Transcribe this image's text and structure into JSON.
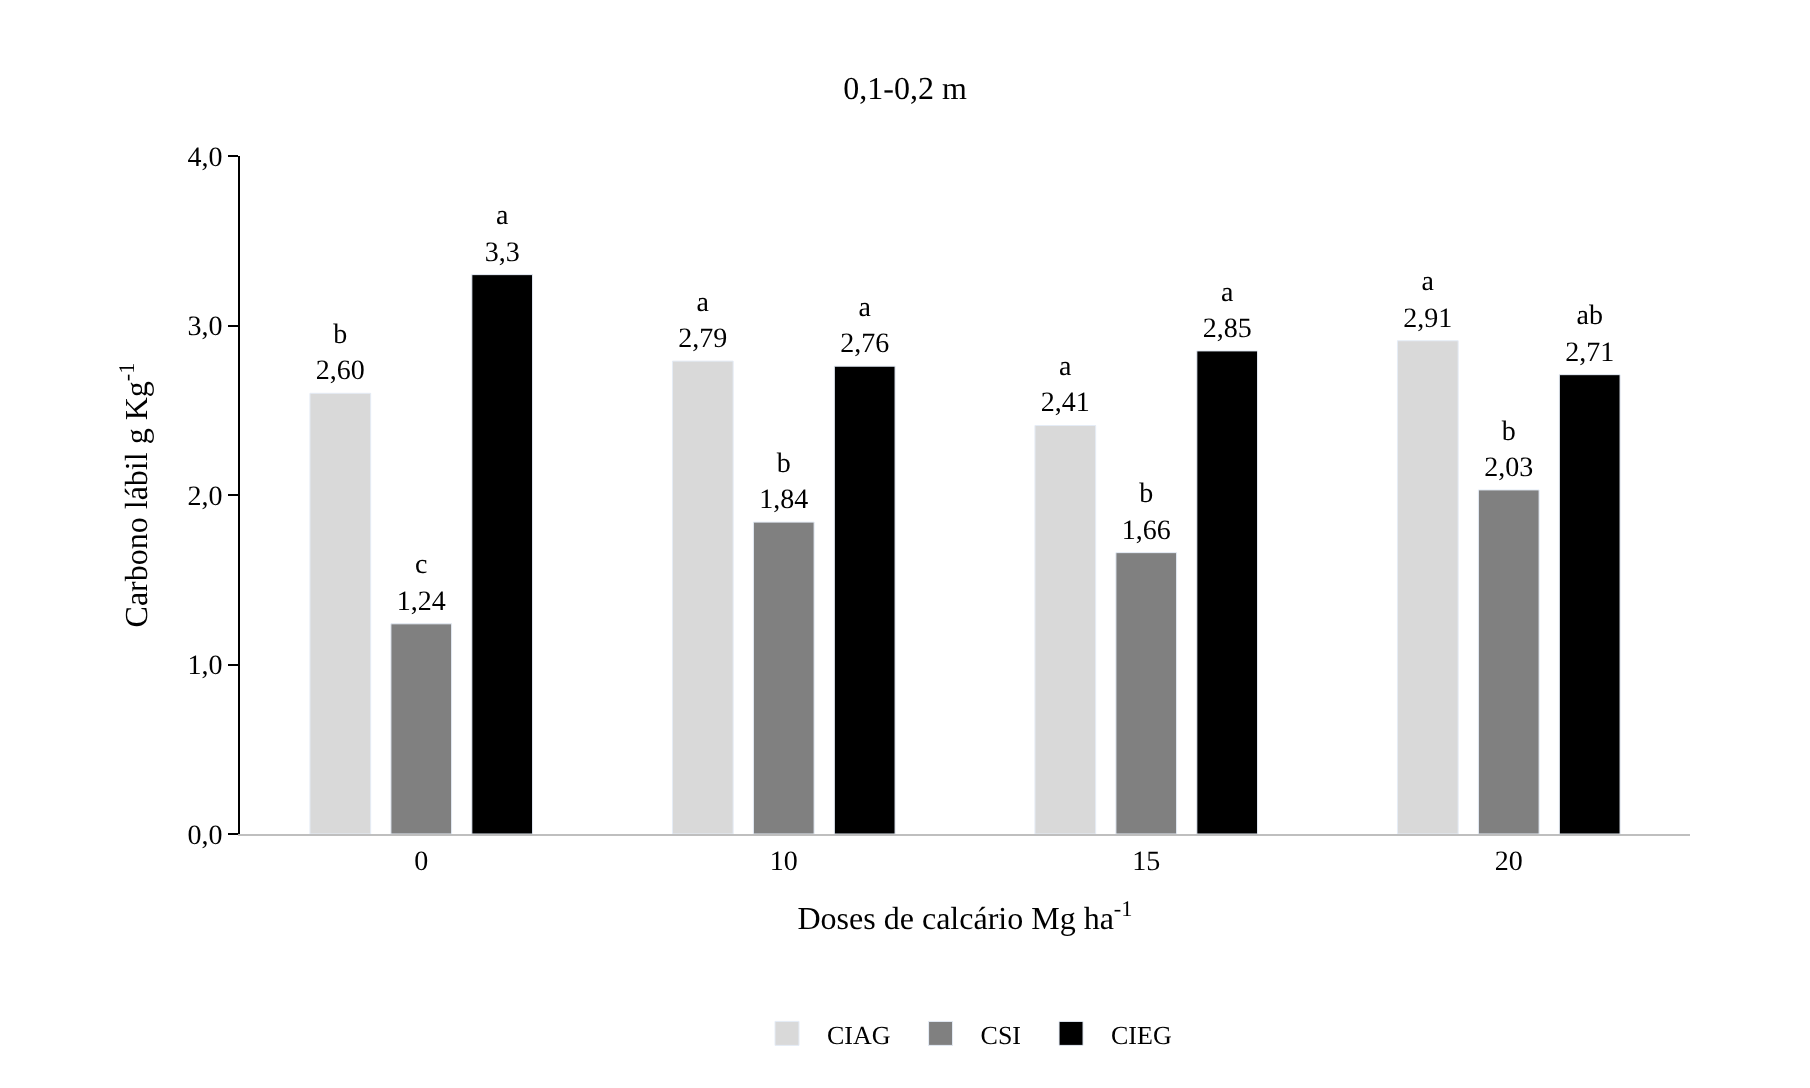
{
  "chart_data": {
    "type": "bar",
    "title": "0,1-0,2 m",
    "xlabel": "Doses de calcário Mg ha$^{-1}$",
    "ylabel": "Carbono lábil g Kg$^{-1}$",
    "categories": [
      "0",
      "10",
      "15",
      "20"
    ],
    "series": [
      {
        "name": "CIAG",
        "color": "#d9d9d9",
        "values": [
          2.6,
          2.79,
          2.41,
          2.91
        ],
        "value_labels": [
          "b\n2,60",
          "a\n2,79",
          "a\n2,41",
          "a\n2,91"
        ]
      },
      {
        "name": "CSI",
        "color": "#808080",
        "values": [
          1.24,
          1.84,
          1.66,
          2.03
        ],
        "value_labels": [
          "c\n1,24",
          "b\n1,84",
          "b\n1,66",
          "b\n2,03"
        ]
      },
      {
        "name": "CIEG",
        "color": "#000000",
        "values": [
          3.3,
          2.76,
          2.85,
          2.71
        ],
        "value_labels": [
          "a\n3,3",
          "a\n2,76",
          "a\n2,85",
          "ab\n2,71"
        ]
      }
    ],
    "ylim": [
      0,
      4
    ],
    "yticks": [
      {
        "value": 0,
        "label": "0,0"
      },
      {
        "value": 1,
        "label": "1,0"
      },
      {
        "value": 2,
        "label": "2,0"
      },
      {
        "value": 3,
        "label": "3,0"
      },
      {
        "value": 4,
        "label": "4,0"
      }
    ],
    "legend": "bottom"
  }
}
